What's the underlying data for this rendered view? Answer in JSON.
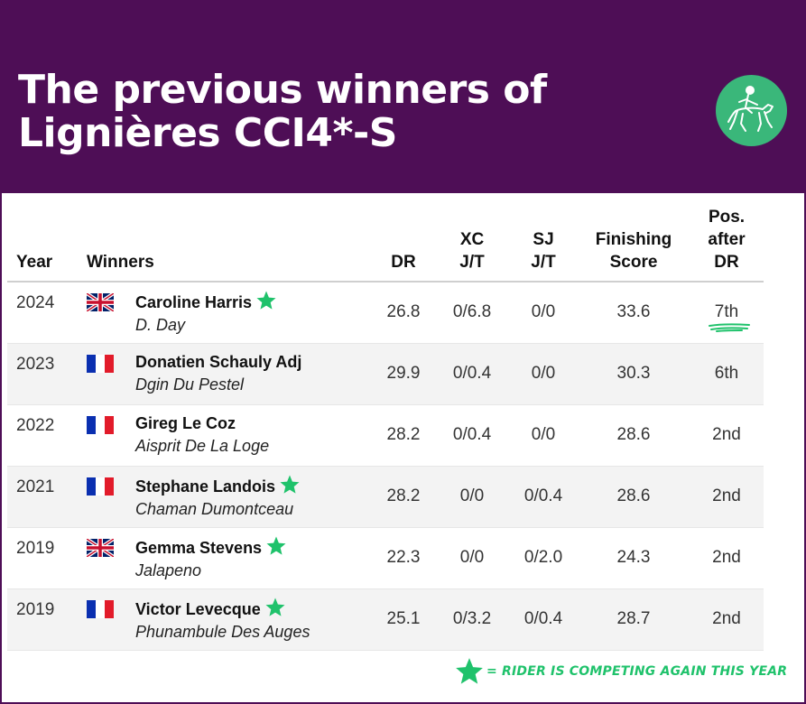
{
  "title": {
    "line1": "The previous winners of",
    "line2": "Lignières CCI4*-S"
  },
  "colors": {
    "header_bg": "#4e0e56",
    "accent_green": "#1fc26b",
    "logo_bg": "#3ab77a"
  },
  "logo": {
    "icon": "horse-rider-dressage-icon"
  },
  "table": {
    "headers": {
      "year": "Year",
      "winners": "Winners",
      "dr": "DR",
      "xc_1": "XC",
      "xc_2": "J/T",
      "sj_1": "SJ",
      "sj_2": "J/T",
      "fin_1": "Finishing",
      "fin_2": "Score",
      "pos_1": "Pos.",
      "pos_2": "after",
      "pos_3": "DR"
    },
    "rows": [
      {
        "year": "2024",
        "flag": "uk-flag-icon",
        "rider": "Caroline Harris",
        "competing": true,
        "horse": "D. Day",
        "dr": "26.8",
        "xc": "0/6.8",
        "sj": "0/0",
        "score": "33.6",
        "pos": "7th",
        "highlight": true
      },
      {
        "year": "2023",
        "flag": "france-flag-icon",
        "rider": "Donatien Schauly Adj",
        "competing": false,
        "horse": "Dgin Du Pestel",
        "dr": "29.9",
        "xc": "0/0.4",
        "sj": "0/0",
        "score": "30.3",
        "pos": "6th",
        "highlight": false
      },
      {
        "year": "2022",
        "flag": "france-flag-icon",
        "rider": "Gireg Le Coz",
        "competing": false,
        "horse": "Aisprit De La Loge",
        "dr": "28.2",
        "xc": "0/0.4",
        "sj": "0/0",
        "score": "28.6",
        "pos": "2nd",
        "highlight": false
      },
      {
        "year": "2021",
        "flag": "france-flag-icon",
        "rider": "Stephane Landois",
        "competing": true,
        "horse": "Chaman Dumontceau",
        "dr": "28.2",
        "xc": "0/0",
        "sj": "0/0.4",
        "score": "28.6",
        "pos": "2nd",
        "highlight": false
      },
      {
        "year": "2019",
        "flag": "uk-flag-icon",
        "rider": "Gemma Stevens",
        "competing": true,
        "horse": "Jalapeno",
        "dr": "22.3",
        "xc": "0/0",
        "sj": "0/2.0",
        "score": "24.3",
        "pos": "2nd",
        "highlight": false
      },
      {
        "year": "2019",
        "flag": "france-flag-icon",
        "rider": "Victor Levecque",
        "competing": true,
        "horse": "Phunambule Des Auges",
        "dr": "25.1",
        "xc": "0/3.2",
        "sj": "0/0.4",
        "score": "28.7",
        "pos": "2nd",
        "highlight": false
      }
    ]
  },
  "footnote": {
    "text": "= RIDER IS COMPETING AGAIN THIS YEAR",
    "icon": "star-icon"
  }
}
